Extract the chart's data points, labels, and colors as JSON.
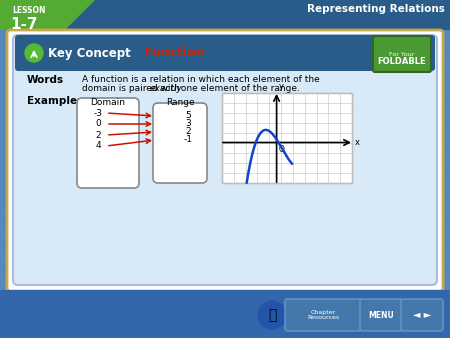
{
  "outer_bg": "#5588bb",
  "header_bg": "#2a5c8a",
  "header_text_color": "white",
  "lesson_label": "LESSON",
  "lesson_number": "1-7",
  "top_right_text": "Representing Relations",
  "white_area_color": "white",
  "white_area_border": "#c8a84b",
  "card_bg": "#d8eaf7",
  "card_border": "#aabbcc",
  "card_header_bg": "#2a5c8a",
  "key_concept_text": "Key Concept",
  "key_concept_color": "white",
  "function_title": "Function",
  "function_title_color": "#cc2200",
  "foldable_bg": "#4a9933",
  "foldable_border": "#336622",
  "for_your_text": "For Your",
  "foldable_text": "FOLDABLE",
  "words_label": "Words",
  "words_line1": "A function is a relation in which each element of the",
  "words_line2": "domain is paired with ",
  "words_exactly": "exactly",
  "words_line2b": " one element of the range.",
  "examples_label": "Examples",
  "domain_label": "Domain",
  "range_label": "Range",
  "domain_values": [
    "-3",
    "0",
    "2",
    "4"
  ],
  "range_values": [
    "5",
    "3",
    "2",
    "-1"
  ],
  "arrow_color": "#cc1100",
  "graph_grid_color": "#cccccc",
  "graph_axis_color": "black",
  "curve_color": "#1144cc",
  "bottom_bar_bg": "#3366aa",
  "btn_color": "#5588bb",
  "green_accent": "#55aa33"
}
